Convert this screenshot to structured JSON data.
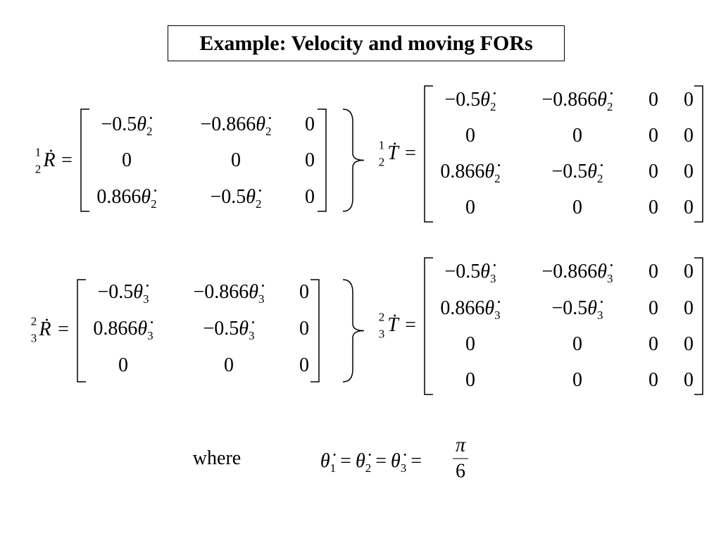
{
  "title": "Example: Velocity and moving FORs",
  "matrices": [
    {
      "lhs": {
        "sup": "1",
        "sub": "2",
        "sym": "Ṙ"
      },
      "relation": "=",
      "rows": [
        [
          {
            "coef": "−0.5",
            "sym": "θ̇",
            "sub": "2"
          },
          {
            "coef": "−0.866",
            "sym": "θ̇",
            "sub": "2"
          },
          "0"
        ],
        [
          "0",
          "0",
          "0"
        ],
        [
          {
            "coef": "0.866",
            "sym": "θ̇",
            "sub": "2"
          },
          {
            "coef": "−0.5",
            "sym": "θ̇",
            "sub": "2"
          },
          "0"
        ]
      ]
    },
    {
      "lhs": {
        "sup": "1",
        "sub": "2",
        "sym": "Ṫ"
      },
      "relation": "=",
      "rows": [
        [
          {
            "coef": "−0.5",
            "sym": "θ̇",
            "sub": "2"
          },
          {
            "coef": "−0.866",
            "sym": "θ̇",
            "sub": "2"
          },
          "0",
          "0"
        ],
        [
          "0",
          "0",
          "0",
          "0"
        ],
        [
          {
            "coef": "0.866",
            "sym": "θ̇",
            "sub": "2"
          },
          {
            "coef": "−0.5",
            "sym": "θ̇",
            "sub": "2"
          },
          "0",
          "0"
        ],
        [
          "0",
          "0",
          "0",
          "0"
        ]
      ]
    },
    {
      "lhs": {
        "sup": "2",
        "sub": "3",
        "sym": "Ṙ"
      },
      "relation": "=",
      "rows": [
        [
          {
            "coef": "−0.5",
            "sym": "θ̇",
            "sub": "3"
          },
          {
            "coef": "−0.866",
            "sym": "θ̇",
            "sub": "3"
          },
          "0"
        ],
        [
          {
            "coef": "0.866",
            "sym": "θ̇",
            "sub": "3"
          },
          {
            "coef": "−0.5",
            "sym": "θ̇",
            "sub": "3"
          },
          "0"
        ],
        [
          "0",
          "0",
          "0"
        ]
      ]
    },
    {
      "lhs": {
        "sup": "2",
        "sub": "3",
        "sym": "Ṫ"
      },
      "relation": "=",
      "rows": [
        [
          {
            "coef": "−0.5",
            "sym": "θ̇",
            "sub": "3"
          },
          {
            "coef": "−0.866",
            "sym": "θ̇",
            "sub": "3"
          },
          "0",
          "0"
        ],
        [
          {
            "coef": "0.866",
            "sym": "θ̇",
            "sub": "3"
          },
          {
            "coef": "−0.5",
            "sym": "θ̇",
            "sub": "3"
          },
          "0",
          "0"
        ],
        [
          "0",
          "0",
          "0",
          "0"
        ],
        [
          "0",
          "0",
          "0",
          "0"
        ]
      ]
    }
  ],
  "where": "where",
  "condition": {
    "terms": [
      {
        "sym": "θ̇",
        "sub": "1"
      },
      {
        "sym": "θ̇",
        "sub": "2"
      },
      {
        "sym": "θ̇",
        "sub": "3"
      }
    ],
    "relation": "=",
    "numerator": "π",
    "denominator": "6"
  }
}
